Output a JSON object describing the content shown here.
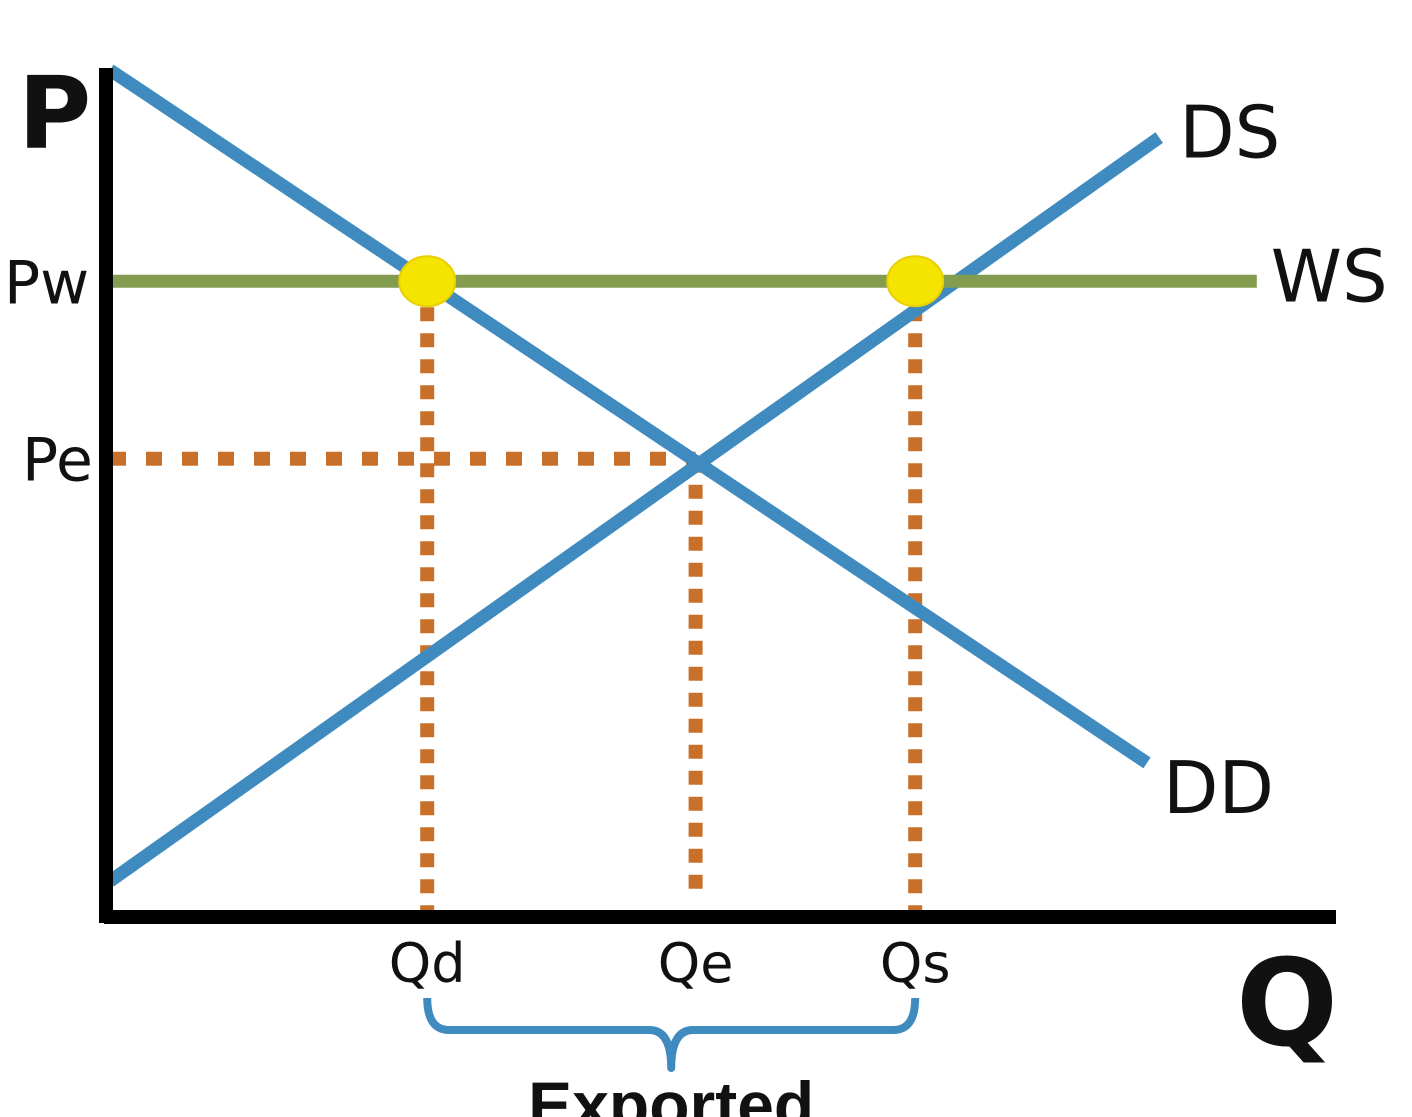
{
  "chart_data": {
    "type": "line",
    "title": "",
    "xlabel": "Q",
    "ylabel": "P",
    "grid": false,
    "legend": "none",
    "xlim": [
      0,
      10
    ],
    "ylim": [
      0,
      10
    ],
    "series": [
      {
        "name": "DD",
        "color": "#3f8bc0",
        "x": [
          0,
          8.5
        ],
        "y": [
          10,
          1.8
        ]
      },
      {
        "name": "DS",
        "color": "#3f8bc0",
        "x": [
          0,
          8.6
        ],
        "y": [
          0.4,
          9.2
        ]
      },
      {
        "name": "WS",
        "color": "#849c4f",
        "x": [
          0,
          9.4
        ],
        "y": [
          7.5,
          7.5
        ]
      }
    ],
    "price_levels": [
      {
        "label": "Pw",
        "value": 7.5
      },
      {
        "label": "Pe",
        "value": 5.4
      }
    ],
    "quantity_levels": [
      {
        "label": "Qd",
        "value": 2.6
      },
      {
        "label": "Qe",
        "value": 4.8
      },
      {
        "label": "Qs",
        "value": 6.6
      }
    ],
    "points": [
      {
        "x": 2.6,
        "y": 7.5,
        "color": "#f5e400"
      },
      {
        "x": 6.6,
        "y": 7.5,
        "color": "#f5e400"
      }
    ],
    "guide_color": "#c8702a",
    "bracket": {
      "from": 2.6,
      "to": 6.6,
      "label": "Exported",
      "color": "#3f8bc0"
    }
  }
}
